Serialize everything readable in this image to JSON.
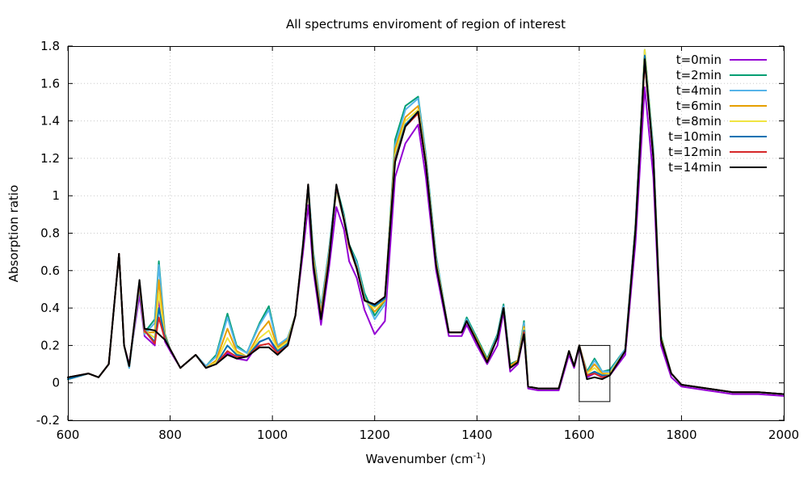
{
  "chart_data": {
    "type": "line",
    "title": "All spectrums enviroment of region of interest",
    "xlabel_main": "Wavenumber (cm",
    "xlabel_sup": "-1",
    "xlabel_end": ")",
    "ylabel": "Absorption ratio",
    "xlim": [
      600,
      2000
    ],
    "ylim": [
      -0.2,
      1.8
    ],
    "xticks": [
      600,
      800,
      1000,
      1200,
      1400,
      1600,
      1800,
      2000
    ],
    "xtick_labels": [
      "600",
      "800",
      "1000",
      "1200",
      "1400",
      "1600",
      "1800",
      "2000"
    ],
    "yticks": [
      -0.2,
      0,
      0.2,
      0.4,
      0.6,
      0.8,
      1.0,
      1.2,
      1.4,
      1.6,
      1.8
    ],
    "ytick_labels": [
      "-0.2",
      "0",
      "0.2",
      "0.4",
      "0.6",
      "0.8",
      "1",
      "1.2",
      "1.4",
      "1.6",
      "1.8"
    ],
    "grid": true,
    "legend_position": "top-right",
    "region_of_interest": {
      "x": [
        1600,
        1660
      ],
      "y": [
        -0.1,
        0.2
      ]
    },
    "x": [
      600,
      640,
      660,
      680,
      690,
      700,
      710,
      720,
      740,
      750,
      770,
      778,
      790,
      800,
      820,
      850,
      870,
      890,
      912,
      930,
      950,
      975,
      993,
      1010,
      1030,
      1045,
      1060,
      1070,
      1080,
      1095,
      1110,
      1125,
      1140,
      1150,
      1165,
      1180,
      1200,
      1220,
      1240,
      1260,
      1285,
      1300,
      1320,
      1345,
      1370,
      1380,
      1400,
      1420,
      1440,
      1452,
      1465,
      1480,
      1492,
      1500,
      1520,
      1560,
      1580,
      1590,
      1600,
      1615,
      1630,
      1645,
      1660,
      1690,
      1710,
      1728,
      1745,
      1760,
      1780,
      1800,
      1850,
      1900,
      1950,
      2000
    ],
    "series": [
      {
        "name": "t=0min",
        "color": "#9400d3",
        "values": [
          0.02,
          0.05,
          0.03,
          0.1,
          0.4,
          0.69,
          0.2,
          0.1,
          0.47,
          0.25,
          0.2,
          0.45,
          0.22,
          0.17,
          0.08,
          0.15,
          0.08,
          0.1,
          0.16,
          0.13,
          0.12,
          0.22,
          0.24,
          0.16,
          0.2,
          0.36,
          0.7,
          0.95,
          0.6,
          0.31,
          0.6,
          0.94,
          0.82,
          0.65,
          0.56,
          0.39,
          0.26,
          0.33,
          1.1,
          1.28,
          1.38,
          1.1,
          0.6,
          0.25,
          0.25,
          0.31,
          0.2,
          0.1,
          0.2,
          0.38,
          0.06,
          0.1,
          0.26,
          -0.03,
          -0.04,
          -0.04,
          0.15,
          0.08,
          0.19,
          0.03,
          0.05,
          0.03,
          0.04,
          0.15,
          0.75,
          1.58,
          1.1,
          0.2,
          0.03,
          -0.02,
          -0.04,
          -0.06,
          -0.06,
          -0.07
        ]
      },
      {
        "name": "t=2min",
        "color": "#009e73",
        "values": [
          0.02,
          0.05,
          0.03,
          0.1,
          0.4,
          0.69,
          0.2,
          0.08,
          0.52,
          0.27,
          0.34,
          0.65,
          0.26,
          0.18,
          0.08,
          0.15,
          0.09,
          0.15,
          0.37,
          0.2,
          0.16,
          0.32,
          0.41,
          0.2,
          0.24,
          0.36,
          0.75,
          1.06,
          0.7,
          0.4,
          0.7,
          1.05,
          0.9,
          0.74,
          0.65,
          0.48,
          0.36,
          0.44,
          1.3,
          1.48,
          1.53,
          1.22,
          0.68,
          0.27,
          0.27,
          0.35,
          0.24,
          0.13,
          0.26,
          0.42,
          0.1,
          0.12,
          0.33,
          -0.02,
          -0.03,
          -0.03,
          0.17,
          0.09,
          0.2,
          0.06,
          0.13,
          0.06,
          0.07,
          0.18,
          0.85,
          1.78,
          1.25,
          0.25,
          0.05,
          -0.01,
          -0.03,
          -0.05,
          -0.05,
          -0.06
        ]
      },
      {
        "name": "t=4min",
        "color": "#56b4e9",
        "values": [
          0.02,
          0.05,
          0.03,
          0.1,
          0.4,
          0.69,
          0.2,
          0.08,
          0.51,
          0.26,
          0.32,
          0.63,
          0.25,
          0.18,
          0.08,
          0.15,
          0.09,
          0.14,
          0.35,
          0.19,
          0.16,
          0.31,
          0.39,
          0.2,
          0.24,
          0.36,
          0.75,
          1.05,
          0.69,
          0.39,
          0.69,
          1.04,
          0.89,
          0.73,
          0.64,
          0.46,
          0.34,
          0.42,
          1.27,
          1.46,
          1.52,
          1.21,
          0.67,
          0.27,
          0.27,
          0.34,
          0.23,
          0.12,
          0.25,
          0.41,
          0.09,
          0.12,
          0.32,
          -0.02,
          -0.03,
          -0.03,
          0.17,
          0.09,
          0.2,
          0.05,
          0.12,
          0.06,
          0.06,
          0.18,
          0.84,
          1.77,
          1.24,
          0.24,
          0.05,
          -0.01,
          -0.03,
          -0.05,
          -0.05,
          -0.06
        ]
      },
      {
        "name": "t=6min",
        "color": "#e69f00",
        "values": [
          0.02,
          0.05,
          0.03,
          0.1,
          0.4,
          0.69,
          0.2,
          0.09,
          0.52,
          0.27,
          0.27,
          0.55,
          0.25,
          0.18,
          0.08,
          0.15,
          0.08,
          0.12,
          0.29,
          0.17,
          0.14,
          0.27,
          0.33,
          0.19,
          0.23,
          0.36,
          0.74,
          1.04,
          0.67,
          0.37,
          0.67,
          1.03,
          0.88,
          0.72,
          0.62,
          0.45,
          0.38,
          0.44,
          1.25,
          1.42,
          1.48,
          1.19,
          0.65,
          0.27,
          0.27,
          0.33,
          0.23,
          0.12,
          0.24,
          0.4,
          0.09,
          0.12,
          0.3,
          -0.02,
          -0.03,
          -0.03,
          0.17,
          0.09,
          0.2,
          0.05,
          0.1,
          0.05,
          0.05,
          0.17,
          0.83,
          1.72,
          1.22,
          0.24,
          0.05,
          -0.01,
          -0.03,
          -0.05,
          -0.05,
          -0.06
        ]
      },
      {
        "name": "t=8min",
        "color": "#f0e442",
        "values": [
          0.02,
          0.05,
          0.03,
          0.1,
          0.4,
          0.69,
          0.2,
          0.09,
          0.53,
          0.28,
          0.24,
          0.48,
          0.24,
          0.18,
          0.08,
          0.15,
          0.08,
          0.11,
          0.24,
          0.16,
          0.14,
          0.24,
          0.28,
          0.18,
          0.22,
          0.36,
          0.74,
          1.04,
          0.65,
          0.36,
          0.66,
          1.03,
          0.87,
          0.72,
          0.61,
          0.44,
          0.4,
          0.45,
          1.22,
          1.4,
          1.46,
          1.18,
          0.64,
          0.27,
          0.27,
          0.33,
          0.22,
          0.11,
          0.24,
          0.4,
          0.08,
          0.11,
          0.29,
          -0.02,
          -0.03,
          -0.03,
          0.17,
          0.09,
          0.2,
          0.05,
          0.08,
          0.04,
          0.05,
          0.17,
          0.82,
          1.78,
          1.22,
          0.23,
          0.05,
          -0.01,
          -0.03,
          -0.05,
          -0.05,
          -0.06
        ]
      },
      {
        "name": "t=10min",
        "color": "#0072b2",
        "values": [
          0.02,
          0.05,
          0.03,
          0.1,
          0.4,
          0.69,
          0.2,
          0.09,
          0.53,
          0.28,
          0.22,
          0.4,
          0.24,
          0.18,
          0.08,
          0.15,
          0.08,
          0.1,
          0.2,
          0.15,
          0.14,
          0.22,
          0.24,
          0.17,
          0.21,
          0.36,
          0.74,
          1.05,
          0.64,
          0.35,
          0.65,
          1.04,
          0.87,
          0.73,
          0.61,
          0.44,
          0.41,
          0.45,
          1.2,
          1.38,
          1.45,
          1.17,
          0.63,
          0.27,
          0.27,
          0.33,
          0.22,
          0.11,
          0.24,
          0.4,
          0.08,
          0.11,
          0.28,
          -0.02,
          -0.03,
          -0.03,
          0.17,
          0.09,
          0.2,
          0.04,
          0.06,
          0.04,
          0.04,
          0.17,
          0.82,
          1.75,
          1.21,
          0.23,
          0.05,
          -0.01,
          -0.03,
          -0.05,
          -0.05,
          -0.06
        ]
      },
      {
        "name": "t=12min",
        "color": "#d62728",
        "values": [
          0.03,
          0.05,
          0.03,
          0.1,
          0.4,
          0.69,
          0.2,
          0.09,
          0.54,
          0.28,
          0.21,
          0.35,
          0.23,
          0.18,
          0.08,
          0.15,
          0.08,
          0.1,
          0.17,
          0.14,
          0.14,
          0.2,
          0.21,
          0.16,
          0.2,
          0.36,
          0.74,
          1.06,
          0.63,
          0.35,
          0.65,
          1.05,
          0.87,
          0.73,
          0.61,
          0.44,
          0.42,
          0.46,
          1.19,
          1.37,
          1.44,
          1.17,
          0.63,
          0.27,
          0.27,
          0.33,
          0.22,
          0.11,
          0.24,
          0.4,
          0.08,
          0.11,
          0.27,
          -0.02,
          -0.03,
          -0.03,
          0.17,
          0.09,
          0.2,
          0.04,
          0.05,
          0.03,
          0.04,
          0.17,
          0.82,
          1.72,
          1.2,
          0.23,
          0.05,
          -0.01,
          -0.03,
          -0.05,
          -0.05,
          -0.06
        ]
      },
      {
        "name": "t=14min",
        "color": "#000000",
        "values": [
          0.03,
          0.05,
          0.03,
          0.1,
          0.4,
          0.69,
          0.2,
          0.09,
          0.55,
          0.29,
          0.28,
          0.26,
          0.23,
          0.18,
          0.08,
          0.15,
          0.08,
          0.1,
          0.15,
          0.13,
          0.14,
          0.19,
          0.19,
          0.15,
          0.2,
          0.36,
          0.74,
          1.06,
          0.63,
          0.34,
          0.64,
          1.06,
          0.87,
          0.74,
          0.61,
          0.44,
          0.42,
          0.46,
          1.18,
          1.37,
          1.45,
          1.17,
          0.63,
          0.27,
          0.27,
          0.33,
          0.22,
          0.11,
          0.24,
          0.4,
          0.08,
          0.11,
          0.26,
          -0.02,
          -0.03,
          -0.03,
          0.17,
          0.09,
          0.2,
          0.02,
          0.03,
          0.02,
          0.04,
          0.17,
          0.82,
          1.73,
          1.2,
          0.23,
          0.05,
          -0.01,
          -0.03,
          -0.05,
          -0.05,
          -0.06
        ]
      }
    ]
  }
}
